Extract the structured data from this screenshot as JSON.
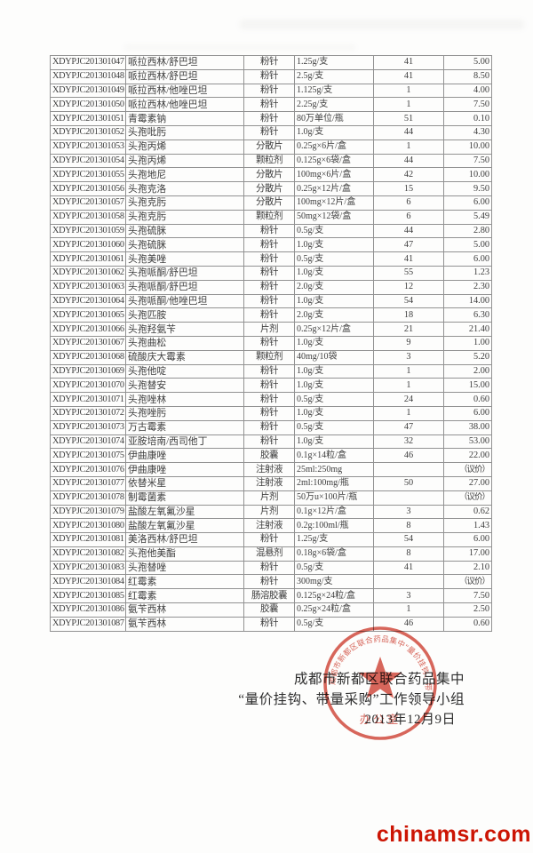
{
  "table": {
    "rows": [
      [
        "XDYPJC201301047",
        "哌拉西林/舒巴坦",
        "粉针",
        "1.25g/支",
        "41",
        "5.00"
      ],
      [
        "XDYPJC201301048",
        "哌拉西林/舒巴坦",
        "粉针",
        "2.5g/支",
        "41",
        "8.50"
      ],
      [
        "XDYPJC201301049",
        "哌拉西林/他唑巴坦",
        "粉针",
        "1.125g/支",
        "1",
        "4.00"
      ],
      [
        "XDYPJC201301050",
        "哌拉西林/他唑巴坦",
        "粉针",
        "2.25g/支",
        "1",
        "7.50"
      ],
      [
        "XDYPJC201301051",
        "青霉素钠",
        "粉针",
        "80万单位/瓶",
        "51",
        "0.10"
      ],
      [
        "XDYPJC201301052",
        "头孢吡肟",
        "粉针",
        "1.0g/支",
        "44",
        "4.30"
      ],
      [
        "XDYPJC201301053",
        "头孢丙烯",
        "分散片",
        "0.25g×6片/盒",
        "1",
        "10.00"
      ],
      [
        "XDYPJC201301054",
        "头孢丙烯",
        "颗粒剂",
        "0.125g×6袋/盒",
        "44",
        "7.50"
      ],
      [
        "XDYPJC201301055",
        "头孢地尼",
        "分散片",
        "100mg×6片/盒",
        "42",
        "10.00"
      ],
      [
        "XDYPJC201301056",
        "头孢克洛",
        "分散片",
        "0.25g×12片/盒",
        "15",
        "9.50"
      ],
      [
        "XDYPJC201301057",
        "头孢克肟",
        "分散片",
        "100mg×12片/盒",
        "6",
        "6.00"
      ],
      [
        "XDYPJC201301058",
        "头孢克肟",
        "颗粒剂",
        "50mg×12袋/盒",
        "6",
        "5.49"
      ],
      [
        "XDYPJC201301059",
        "头孢硫脒",
        "粉针",
        "0.5g/支",
        "44",
        "2.80"
      ],
      [
        "XDYPJC201301060",
        "头孢硫脒",
        "粉针",
        "1.0g/支",
        "47",
        "5.00"
      ],
      [
        "XDYPJC201301061",
        "头孢美唑",
        "粉针",
        "0.5g/支",
        "41",
        "6.00"
      ],
      [
        "XDYPJC201301062",
        "头孢哌酮/舒巴坦",
        "粉针",
        "1.0g/支",
        "55",
        "1.23"
      ],
      [
        "XDYPJC201301063",
        "头孢哌酮/舒巴坦",
        "粉针",
        "2.0g/支",
        "12",
        "2.30"
      ],
      [
        "XDYPJC201301064",
        "头孢哌酮/他唑巴坦",
        "粉针",
        "1.0g/支",
        "54",
        "14.00"
      ],
      [
        "XDYPJC201301065",
        "头孢匹胺",
        "粉针",
        "2.0g/支",
        "18",
        "6.30"
      ],
      [
        "XDYPJC201301066",
        "头孢羟氨苄",
        "片剂",
        "0.25g×12片/盒",
        "21",
        "21.40"
      ],
      [
        "XDYPJC201301067",
        "头孢曲松",
        "粉针",
        "1.0g/支",
        "9",
        "1.00"
      ],
      [
        "XDYPJC201301068",
        "硫酸庆大霉素",
        "颗粒剂",
        "40mg/10袋",
        "3",
        "5.20"
      ],
      [
        "XDYPJC201301069",
        "头孢他啶",
        "粉针",
        "1.0g/支",
        "1",
        "2.00"
      ],
      [
        "XDYPJC201301070",
        "头孢替安",
        "粉针",
        "1.0g/支",
        "1",
        "15.00"
      ],
      [
        "XDYPJC201301071",
        "头孢唑林",
        "粉针",
        "0.5g/支",
        "24",
        "0.60"
      ],
      [
        "XDYPJC201301072",
        "头孢唑肟",
        "粉针",
        "1.0g/支",
        "1",
        "6.00"
      ],
      [
        "XDYPJC201301073",
        "万古霉素",
        "粉针",
        "0.5g/支",
        "47",
        "38.00"
      ],
      [
        "XDYPJC201301074",
        "亚胺培南/西司他丁",
        "粉针",
        "1.0g/支",
        "32",
        "53.00"
      ],
      [
        "XDYPJC201301075",
        "伊曲康唑",
        "胶囊",
        "0.1g×14粒/盒",
        "46",
        "22.00"
      ],
      [
        "XDYPJC201301076",
        "伊曲康唑",
        "注射液",
        "25ml:250mg",
        "",
        "（议价）"
      ],
      [
        "XDYPJC201301077",
        "依替米星",
        "注射液",
        "2ml:100mg/瓶",
        "50",
        "27.00"
      ],
      [
        "XDYPJC201301078",
        "制霉菌素",
        "片剂",
        "50万u×100片/瓶",
        "",
        "（议价）"
      ],
      [
        "XDYPJC201301079",
        "盐酸左氧氟沙星",
        "片剂",
        "0.1g×12片/盒",
        "3",
        "0.62"
      ],
      [
        "XDYPJC201301080",
        "盐酸左氧氟沙星",
        "注射液",
        "0.2g:100ml/瓶",
        "8",
        "1.43"
      ],
      [
        "XDYPJC201301081",
        "美洛西林/舒巴坦",
        "粉针",
        "1.25g/支",
        "54",
        "6.00"
      ],
      [
        "XDYPJC201301082",
        "头孢他美酯",
        "混悬剂",
        "0.18g×6袋/盒",
        "8",
        "17.00"
      ],
      [
        "XDYPJC201301083",
        "头孢替唑",
        "粉针",
        "0.5g/支",
        "41",
        "2.10"
      ],
      [
        "XDYPJC201301084",
        "红霉素",
        "粉针",
        "300mg/支",
        "",
        "（议价）"
      ],
      [
        "XDYPJC201301085",
        "红霉素",
        "肠溶胶囊",
        "0.125g×24粒/盒",
        "3",
        "7.50"
      ],
      [
        "XDYPJC201301086",
        "氨苄西林",
        "胶囊",
        "0.25g×24粒/盒",
        "1",
        "2.50"
      ],
      [
        "XDYPJC201301087",
        "氨苄西林",
        "粉针",
        "0.5g/支",
        "46",
        "0.60"
      ]
    ]
  },
  "signature": {
    "line1": "成都市新都区联合药品集中",
    "line2": "“量价挂钩、带量采购”工作领导小组",
    "line3": "2013年12月9日"
  },
  "stamp": {
    "arc_text": "成都市新都区联合药品集中“量价挂钩、带量采购”工作领导小组",
    "bottom_text": "办公室",
    "color": "#cf3f31"
  },
  "watermark": {
    "text": "chinamsr.com",
    "color": "#cc1504"
  }
}
